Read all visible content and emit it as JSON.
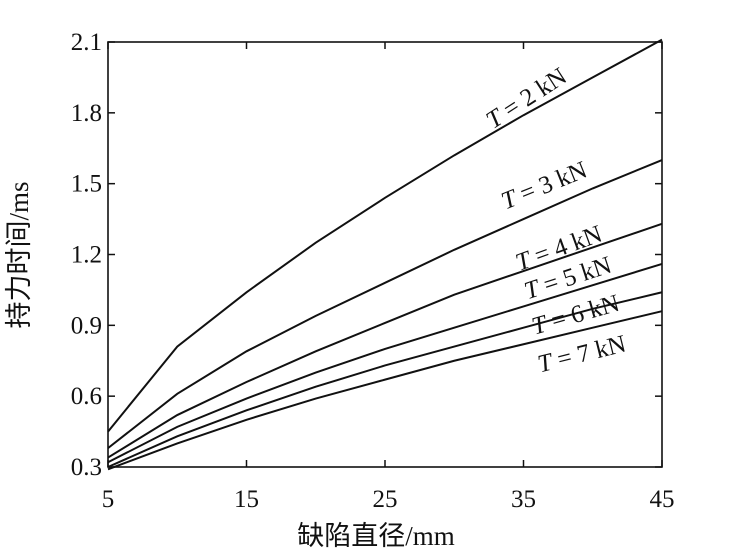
{
  "chart_data": {
    "type": "line",
    "title": "",
    "xlabel": "缺陷直径/mm",
    "ylabel": "持力时间/ms",
    "xlim": [
      5,
      45
    ],
    "ylim": [
      0.3,
      2.1
    ],
    "xticks": [
      "5",
      "15",
      "25",
      "35",
      "45"
    ],
    "yticks": [
      "0.3",
      "0.6",
      "0.9",
      "1.2",
      "1.5",
      "1.8",
      "2.1"
    ],
    "grid": false,
    "legend": "none",
    "x": [
      5,
      10,
      15,
      20,
      25,
      30,
      35,
      40,
      45
    ],
    "series": [
      {
        "name": "T = 2 kN",
        "values": [
          0.45,
          0.81,
          1.04,
          1.25,
          1.44,
          1.62,
          1.79,
          1.95,
          2.11
        ]
      },
      {
        "name": "T = 3 kN",
        "values": [
          0.38,
          0.61,
          0.79,
          0.94,
          1.08,
          1.22,
          1.35,
          1.48,
          1.6
        ]
      },
      {
        "name": "T = 4 kN",
        "values": [
          0.34,
          0.52,
          0.66,
          0.79,
          0.91,
          1.03,
          1.13,
          1.23,
          1.33
        ]
      },
      {
        "name": "T = 5 kN",
        "values": [
          0.32,
          0.47,
          0.59,
          0.7,
          0.8,
          0.89,
          0.98,
          1.07,
          1.16
        ]
      },
      {
        "name": "T = 6 kN",
        "values": [
          0.3,
          0.43,
          0.54,
          0.64,
          0.73,
          0.81,
          0.89,
          0.97,
          1.04
        ]
      },
      {
        "name": "T = 7 kN",
        "values": [
          0.29,
          0.4,
          0.5,
          0.59,
          0.67,
          0.75,
          0.82,
          0.89,
          0.96
        ]
      }
    ],
    "labels": [
      {
        "italic": "T",
        "text": " = 2 kN",
        "x": 32.8,
        "y": 1.73,
        "angle": -33
      },
      {
        "italic": "T",
        "text": " = 3 kN",
        "x": 33.7,
        "y": 1.39,
        "angle": -22
      },
      {
        "italic": "T",
        "text": " = 4 kN",
        "x": 34.7,
        "y": 1.13,
        "angle": -20
      },
      {
        "italic": "T",
        "text": " = 5 kN",
        "x": 35.3,
        "y": 1.01,
        "angle": -18
      },
      {
        "italic": "T",
        "text": " = 6 kN",
        "x": 35.8,
        "y": 0.86,
        "angle": -16
      },
      {
        "italic": "T",
        "text": " = 7 kN",
        "x": 36.2,
        "y": 0.7,
        "angle": -14
      }
    ]
  }
}
